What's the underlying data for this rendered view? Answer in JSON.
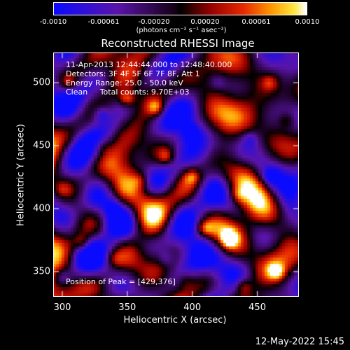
{
  "chart_data": {
    "type": "heatmap",
    "title": "Reconstructed RHESSI Image",
    "xlabel": "Heliocentric X (arcsec)",
    "ylabel": "Heliocentric Y (arcsec)",
    "xlim": [
      293,
      482
    ],
    "ylim": [
      330,
      524
    ],
    "xticks": [
      300,
      350,
      400,
      450
    ],
    "yticks": [
      350,
      400,
      450,
      500
    ],
    "colorbar": {
      "min": -0.001,
      "max": 0.001,
      "tick_labels": [
        "-0.0010",
        "-0.00061",
        "-0.00020",
        "0.00020",
        "0.00061",
        "0.0010"
      ],
      "tick_values": [
        -0.001,
        -0.00061,
        -0.0002,
        0.0002,
        0.00061,
        0.001
      ],
      "label": "(photons cm⁻² s⁻¹ asec⁻²)"
    },
    "peak": [
      429,
      376
    ],
    "hotspots": [
      {
        "x": 429,
        "y": 376,
        "v": 0.001
      },
      {
        "x": 350,
        "y": 487,
        "v": 0.00085
      },
      {
        "x": 372,
        "y": 480,
        "v": 0.0007
      },
      {
        "x": 465,
        "y": 350,
        "v": 0.00078
      },
      {
        "x": 440,
        "y": 338,
        "v": 0.0006
      },
      {
        "x": 410,
        "y": 384,
        "v": 0.00065
      },
      {
        "x": 400,
        "y": 425,
        "v": 0.0006
      },
      {
        "x": 380,
        "y": 441,
        "v": 0.0006
      },
      {
        "x": 315,
        "y": 373,
        "v": 0.00055
      },
      {
        "x": 305,
        "y": 500,
        "v": 0.00055
      },
      {
        "x": 460,
        "y": 500,
        "v": 0.0005
      },
      {
        "x": 473,
        "y": 470,
        "v": 0.00045
      },
      {
        "x": 360,
        "y": 422,
        "v": 0.0004
      },
      {
        "x": 435,
        "y": 410,
        "v": 0.00045
      },
      {
        "x": 300,
        "y": 415,
        "v": 0.0004
      },
      {
        "x": 340,
        "y": 360,
        "v": 0.00035
      },
      {
        "x": 395,
        "y": 343,
        "v": 0.00035
      },
      {
        "x": 330,
        "y": 450,
        "v": 0.0003
      }
    ],
    "coldspots": [
      {
        "x": 330,
        "y": 475,
        "v": -0.0006
      },
      {
        "x": 400,
        "y": 460,
        "v": -0.0005
      },
      {
        "x": 340,
        "y": 400,
        "v": -0.0004
      },
      {
        "x": 460,
        "y": 425,
        "v": -0.0005
      },
      {
        "x": 300,
        "y": 345,
        "v": -0.0005
      },
      {
        "x": 380,
        "y": 360,
        "v": -0.0004
      },
      {
        "x": 445,
        "y": 455,
        "v": -0.0004
      },
      {
        "x": 420,
        "y": 500,
        "v": -0.0003
      }
    ]
  },
  "info": {
    "time_range": "11-Apr-2013 12:44:44.000 to 12:48:40.000",
    "detectors": "Detectors: 3F 4F 5F 6F 7F 8F, Att 1",
    "energy": "Energy Range: 25.0 - 50.0 keV",
    "clean": "Clean     Total counts: 9.70E+03",
    "peak_text": "Position of Peak = [429,376]"
  },
  "footer": "12-May-2022 15:45"
}
